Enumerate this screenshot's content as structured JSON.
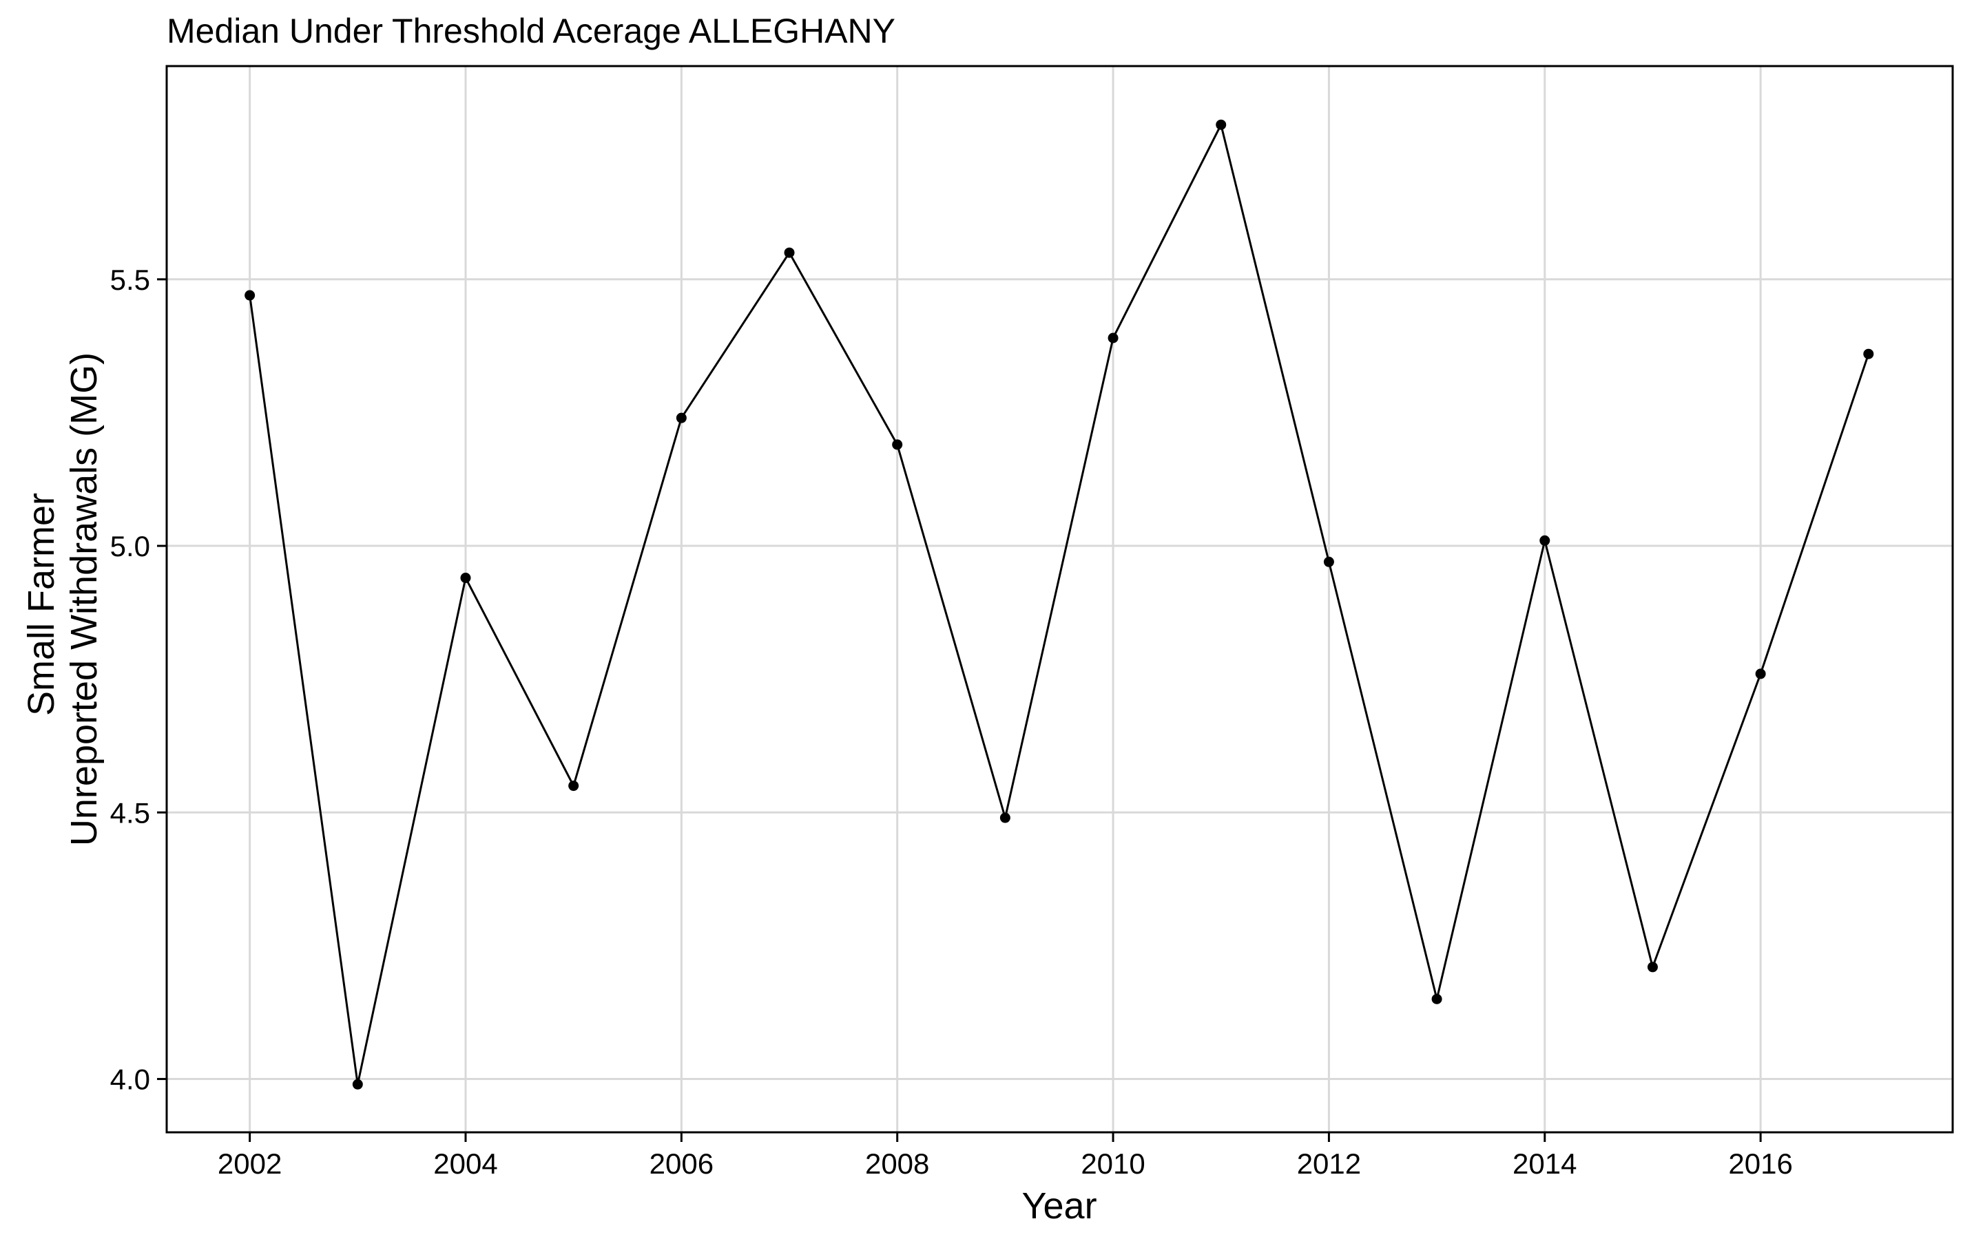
{
  "chart_data": {
    "type": "line",
    "title": "Median Under Threshold Acerage ALLEGHANY",
    "xlabel": "Year",
    "ylabel_lines": [
      "Small Farmer",
      "Unreported Withdrawals (MG)"
    ],
    "x": [
      2002,
      2003,
      2004,
      2005,
      2006,
      2007,
      2008,
      2009,
      2010,
      2011,
      2012,
      2013,
      2014,
      2015,
      2016,
      2017
    ],
    "series": [
      {
        "values": [
          5.47,
          3.99,
          4.94,
          4.55,
          5.24,
          5.55,
          5.19,
          4.49,
          5.39,
          5.79,
          4.97,
          4.15,
          5.01,
          4.21,
          4.76,
          5.36
        ]
      }
    ],
    "xticks": [
      2002,
      2004,
      2006,
      2008,
      2010,
      2012,
      2014,
      2016
    ],
    "xtick_labels": [
      "2002",
      "2004",
      "2006",
      "2008",
      "2010",
      "2012",
      "2014",
      "2016"
    ],
    "yticks": [
      4.0,
      4.5,
      5.0,
      5.5
    ],
    "ytick_labels": [
      "4.0",
      "4.5",
      "5.0",
      "5.5"
    ],
    "xlim": [
      2001.23,
      2017.78
    ],
    "ylim": [
      3.9,
      5.9
    ],
    "grid": true,
    "line_color": "#000000",
    "grid_color": "#d9d9d9"
  }
}
